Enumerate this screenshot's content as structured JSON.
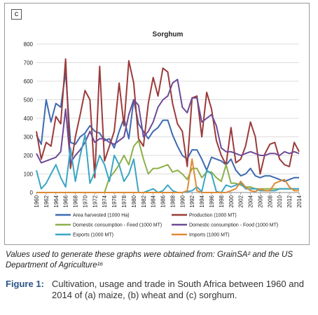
{
  "panel_label": "c",
  "source_note": "Values used to generate these graphs were obtained from: GrainSA² and the US Department of Agriculture¹⁶",
  "caption": {
    "label": "Figure 1:",
    "text": "Cultivation, usage and trade in South Africa between 1960 and 2014 of (a) maize, (b) wheat and (c) sorghum."
  },
  "chart_data": {
    "type": "line",
    "title": "Sorghum",
    "xlabel": "",
    "ylabel": "",
    "ylim": [
      0,
      800
    ],
    "yticks": [
      0,
      100,
      200,
      300,
      400,
      500,
      600,
      700,
      800
    ],
    "xlim": [
      1960,
      2014
    ],
    "xticks": [
      1960,
      1962,
      1964,
      1966,
      1968,
      1970,
      1972,
      1974,
      1976,
      1978,
      1980,
      1982,
      1984,
      1986,
      1988,
      1990,
      1992,
      1994,
      1996,
      1998,
      2000,
      2002,
      2004,
      2006,
      2008,
      2010,
      2012,
      2014
    ],
    "grid": true,
    "legend_position": "bottom",
    "x": [
      1960,
      1961,
      1962,
      1963,
      1964,
      1965,
      1966,
      1967,
      1968,
      1969,
      1970,
      1971,
      1972,
      1973,
      1974,
      1975,
      1976,
      1977,
      1978,
      1979,
      1980,
      1981,
      1982,
      1983,
      1984,
      1985,
      1986,
      1987,
      1988,
      1989,
      1990,
      1991,
      1992,
      1993,
      1994,
      1995,
      1996,
      1997,
      1998,
      1999,
      2000,
      2001,
      2002,
      2003,
      2004,
      2005,
      2006,
      2007,
      2008,
      2009,
      2010,
      2011,
      2012,
      2013,
      2014
    ],
    "series": [
      {
        "name": "Area harvested (1000 Ha)",
        "color": "#3d6bb0",
        "values": [
          310,
          260,
          500,
          380,
          480,
          460,
          650,
          270,
          260,
          300,
          320,
          360,
          330,
          320,
          280,
          290,
          240,
          330,
          400,
          290,
          500,
          370,
          330,
          290,
          330,
          350,
          390,
          390,
          310,
          250,
          200,
          180,
          230,
          230,
          180,
          120,
          190,
          180,
          170,
          150,
          180,
          120,
          90,
          100,
          130,
          90,
          80,
          90,
          90,
          80,
          70,
          60,
          70,
          80,
          80
        ]
      },
      {
        "name": "Production (1000 MT)",
        "color": "#9c3a3a",
        "values": [
          330,
          180,
          270,
          250,
          410,
          370,
          720,
          130,
          300,
          420,
          550,
          500,
          80,
          680,
          170,
          250,
          330,
          590,
          360,
          710,
          590,
          290,
          250,
          480,
          620,
          520,
          670,
          650,
          480,
          370,
          330,
          140,
          510,
          520,
          300,
          540,
          450,
          280,
          200,
          150,
          350,
          160,
          180,
          250,
          380,
          300,
          100,
          210,
          260,
          270,
          180,
          150,
          140,
          270,
          220
        ]
      },
      {
        "name": "Domestic consumption - Feed (1000 MT)",
        "color": "#8db04a",
        "values": [
          0,
          0,
          0,
          0,
          0,
          0,
          0,
          0,
          0,
          0,
          0,
          0,
          0,
          0,
          0,
          80,
          110,
          150,
          200,
          150,
          250,
          280,
          180,
          100,
          130,
          130,
          140,
          150,
          110,
          120,
          100,
          70,
          130,
          130,
          80,
          110,
          110,
          80,
          60,
          150,
          50,
          50,
          40,
          30,
          30,
          20,
          20,
          20,
          20,
          20,
          20,
          20,
          20,
          20,
          20
        ]
      },
      {
        "name": "Domestic consumption - Food (1000 MT)",
        "color": "#6e4a97",
        "values": [
          210,
          160,
          170,
          180,
          190,
          220,
          450,
          160,
          200,
          230,
          270,
          330,
          270,
          290,
          290,
          270,
          260,
          280,
          300,
          420,
          500,
          470,
          300,
          330,
          380,
          460,
          500,
          520,
          590,
          610,
          460,
          430,
          510,
          510,
          380,
          400,
          420,
          360,
          240,
          220,
          220,
          210,
          200,
          210,
          220,
          210,
          200,
          200,
          210,
          210,
          200,
          220,
          210,
          220,
          210
        ]
      },
      {
        "name": "Exports (1000 MT)",
        "color": "#3aa6c4",
        "values": [
          120,
          20,
          50,
          100,
          150,
          80,
          30,
          240,
          60,
          200,
          310,
          50,
          110,
          200,
          150,
          60,
          200,
          150,
          60,
          100,
          180,
          0,
          0,
          10,
          20,
          0,
          10,
          40,
          10,
          0,
          0,
          5,
          10,
          30,
          5,
          120,
          100,
          5,
          0,
          40,
          30,
          40,
          50,
          20,
          20,
          20,
          10,
          10,
          10,
          10,
          20,
          20,
          20,
          20,
          20
        ]
      },
      {
        "name": "Imports (1000 MT)",
        "color": "#e08a36",
        "values": [
          0,
          0,
          0,
          0,
          0,
          0,
          0,
          0,
          0,
          0,
          0,
          0,
          0,
          0,
          0,
          0,
          0,
          0,
          0,
          0,
          0,
          0,
          0,
          0,
          0,
          0,
          0,
          0,
          0,
          0,
          0,
          10,
          180,
          10,
          0,
          0,
          0,
          0,
          0,
          0,
          10,
          20,
          60,
          30,
          10,
          5,
          20,
          10,
          10,
          50,
          60,
          70,
          30,
          10,
          10
        ]
      }
    ]
  }
}
